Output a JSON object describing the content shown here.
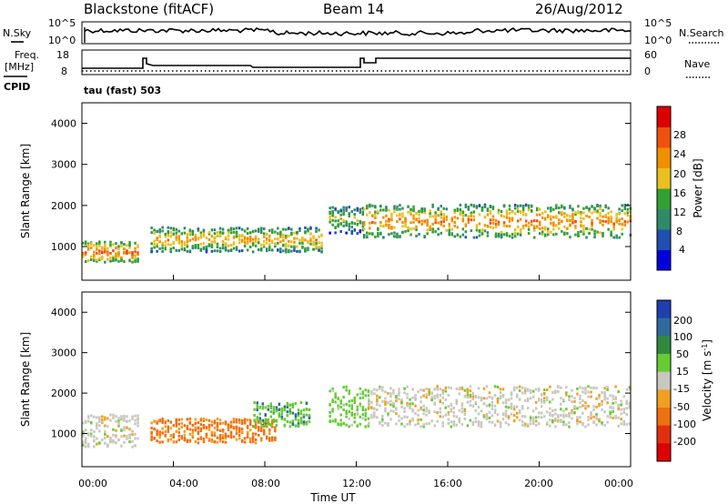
{
  "header": {
    "station": "Blackstone (fitACF)",
    "beam": "Beam 14",
    "date": "26/Aug/2012"
  },
  "strip": {
    "left_top_label": "N.Sky",
    "left_freq_label": "Freq.",
    "left_freq_unit": "[MHz]",
    "left_cpid_label": "CPID",
    "right_top_label": "N.Search",
    "right_nave_label": "Nave",
    "noise_ticks": [
      "10^5",
      "10^0"
    ],
    "freq_ticks": [
      "18",
      "8"
    ],
    "nave_ticks": [
      "60",
      "0"
    ],
    "cpid_text": "tau (fast) 503"
  },
  "x_axis": {
    "label": "Time UT",
    "ticks": [
      "00:00",
      "04:00",
      "08:00",
      "12:00",
      "16:00",
      "20:00",
      "00:00"
    ]
  },
  "y_axis": {
    "label": "Slant Range [km]",
    "ticks": [
      "1000",
      "2000",
      "3000",
      "4000"
    ]
  },
  "power_bar": {
    "label": "Power [dB]",
    "ticks": [
      "4",
      "8",
      "12",
      "16",
      "20",
      "24",
      "28"
    ],
    "colors": [
      "#0000dd",
      "#1f4fb0",
      "#2f8a6a",
      "#33a033",
      "#e8c020",
      "#f09000",
      "#f05010",
      "#dd0000"
    ]
  },
  "velocity_bar": {
    "label": "Velocity [m s",
    "label_sup": "-1",
    "label_end": "]",
    "ticks": [
      "200",
      "100",
      "50",
      "15",
      "-15",
      "-50",
      "-100",
      "-200"
    ],
    "colors": [
      "#1f3fb0",
      "#2f6a9a",
      "#2f8a40",
      "#66cc33",
      "#c8c8c0",
      "#f0a020",
      "#f07010",
      "#e03010",
      "#dd0000"
    ]
  },
  "chart_data": {
    "type": "heatmap",
    "x_range_hours": [
      0,
      24
    ],
    "y_range_km": [
      180,
      4500
    ],
    "power_bands": [
      {
        "start": 0.0,
        "end": 2.5,
        "center": 900,
        "width": 250,
        "dB": 26
      },
      {
        "start": 3.0,
        "end": 10.5,
        "center": 1200,
        "width": 300,
        "dB": 22
      },
      {
        "start": 10.8,
        "end": 12.3,
        "center": 1700,
        "width": 350,
        "dB": 18
      },
      {
        "start": 12.3,
        "end": 24.0,
        "center": 1650,
        "width": 400,
        "dB": 24
      }
    ],
    "velocity_bands": [
      {
        "start": 0.0,
        "end": 2.5,
        "center": 1100,
        "width": 400,
        "velocity": 0
      },
      {
        "start": 3.0,
        "end": 8.5,
        "center": 1100,
        "width": 300,
        "velocity": -60
      },
      {
        "start": 7.5,
        "end": 10.0,
        "center": 1500,
        "width": 300,
        "velocity": 40
      },
      {
        "start": 10.8,
        "end": 12.5,
        "center": 1700,
        "width": 500,
        "velocity": 30
      },
      {
        "start": 12.5,
        "end": 24.0,
        "center": 1700,
        "width": 500,
        "velocity": 0
      }
    ]
  }
}
